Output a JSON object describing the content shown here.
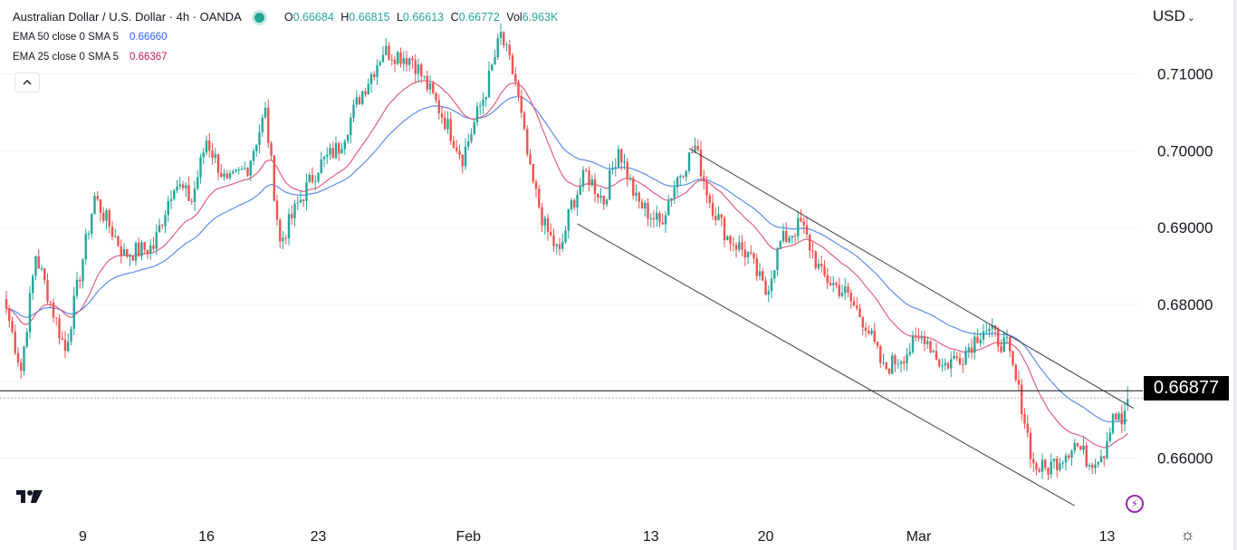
{
  "header": {
    "symbol_title": "Australian Dollar / U.S. Dollar · 4h · OANDA",
    "ohlc": [
      {
        "key": "O",
        "value": "0.66684"
      },
      {
        "key": "H",
        "value": "0.66815"
      },
      {
        "key": "L",
        "value": "0.66613"
      },
      {
        "key": "C",
        "value": "0.66772"
      },
      {
        "key": "Vol",
        "value": "6.963K"
      }
    ],
    "indicators": [
      {
        "label": "EMA 50 close 0 SMA 5",
        "value": "0.66660",
        "color": "#2962ff"
      },
      {
        "label": "EMA 25 close 0 SMA 5",
        "value": "0.66367",
        "color": "#c2185b"
      }
    ],
    "currency": "USD",
    "collapse_icon": "chevron-up-icon"
  },
  "price_label": "0.66877",
  "colors": {
    "up": "#26a69a",
    "down": "#ef5350",
    "ema50": "#5b8def",
    "ema25": "#e0607e",
    "line": "#131722"
  },
  "chart_data": {
    "type": "candlestick",
    "timeframe": "4h",
    "y_ticks": [
      "0.71000",
      "0.70000",
      "0.69000",
      "0.68000",
      "0.66000"
    ],
    "ylim": [
      0.653,
      0.7175
    ],
    "x_ticks": [
      {
        "label": "9",
        "index": 26
      },
      {
        "label": "16",
        "index": 68
      },
      {
        "label": "23",
        "index": 106
      },
      {
        "label": "Feb",
        "index": 157
      },
      {
        "label": "13",
        "index": 219
      },
      {
        "label": "20",
        "index": 258
      },
      {
        "label": "Mar",
        "index": 310
      },
      {
        "label": "13",
        "index": 374
      }
    ],
    "anchors": [
      [
        0,
        0.6795
      ],
      [
        5,
        0.6715
      ],
      [
        10,
        0.6865
      ],
      [
        20,
        0.674
      ],
      [
        30,
        0.694
      ],
      [
        40,
        0.6865
      ],
      [
        50,
        0.6875
      ],
      [
        57,
        0.696
      ],
      [
        63,
        0.6935
      ],
      [
        68,
        0.7015
      ],
      [
        75,
        0.6955
      ],
      [
        82,
        0.698
      ],
      [
        88,
        0.705
      ],
      [
        93,
        0.688
      ],
      [
        99,
        0.693
      ],
      [
        106,
        0.698
      ],
      [
        113,
        0.7005
      ],
      [
        120,
        0.707
      ],
      [
        128,
        0.713
      ],
      [
        138,
        0.712
      ],
      [
        147,
        0.7055
      ],
      [
        155,
        0.6992
      ],
      [
        163,
        0.708
      ],
      [
        168,
        0.715
      ],
      [
        173,
        0.709
      ],
      [
        178,
        0.697
      ],
      [
        183,
        0.69
      ],
      [
        188,
        0.6865
      ],
      [
        192,
        0.693
      ],
      [
        197,
        0.697
      ],
      [
        203,
        0.6935
      ],
      [
        208,
        0.7005
      ],
      [
        214,
        0.6935
      ],
      [
        222,
        0.6905
      ],
      [
        228,
        0.6965
      ],
      [
        234,
        0.7005
      ],
      [
        239,
        0.6935
      ],
      [
        245,
        0.6888
      ],
      [
        252,
        0.6865
      ],
      [
        258,
        0.6815
      ],
      [
        263,
        0.688
      ],
      [
        270,
        0.6905
      ],
      [
        277,
        0.6838
      ],
      [
        285,
        0.6815
      ],
      [
        292,
        0.6775
      ],
      [
        298,
        0.6715
      ],
      [
        305,
        0.6735
      ],
      [
        312,
        0.676
      ],
      [
        318,
        0.672
      ],
      [
        325,
        0.6735
      ],
      [
        332,
        0.677
      ],
      [
        340,
        0.6745
      ],
      [
        345,
        0.667
      ],
      [
        349,
        0.659
      ],
      [
        353,
        0.6585
      ],
      [
        358,
        0.66
      ],
      [
        363,
        0.662
      ],
      [
        368,
        0.6595
      ],
      [
        373,
        0.661
      ],
      [
        376,
        0.666
      ],
      [
        379,
        0.6645
      ],
      [
        381,
        0.66772
      ]
    ],
    "ema50_final": 0.6666,
    "ema25_final": 0.66367,
    "horizontal_level": 0.66877,
    "channel_upper": [
      [
        232,
        0.7003
      ],
      [
        383,
        0.6665
      ]
    ],
    "channel_lower": [
      [
        194,
        0.6905
      ],
      [
        363,
        0.6538
      ]
    ]
  }
}
